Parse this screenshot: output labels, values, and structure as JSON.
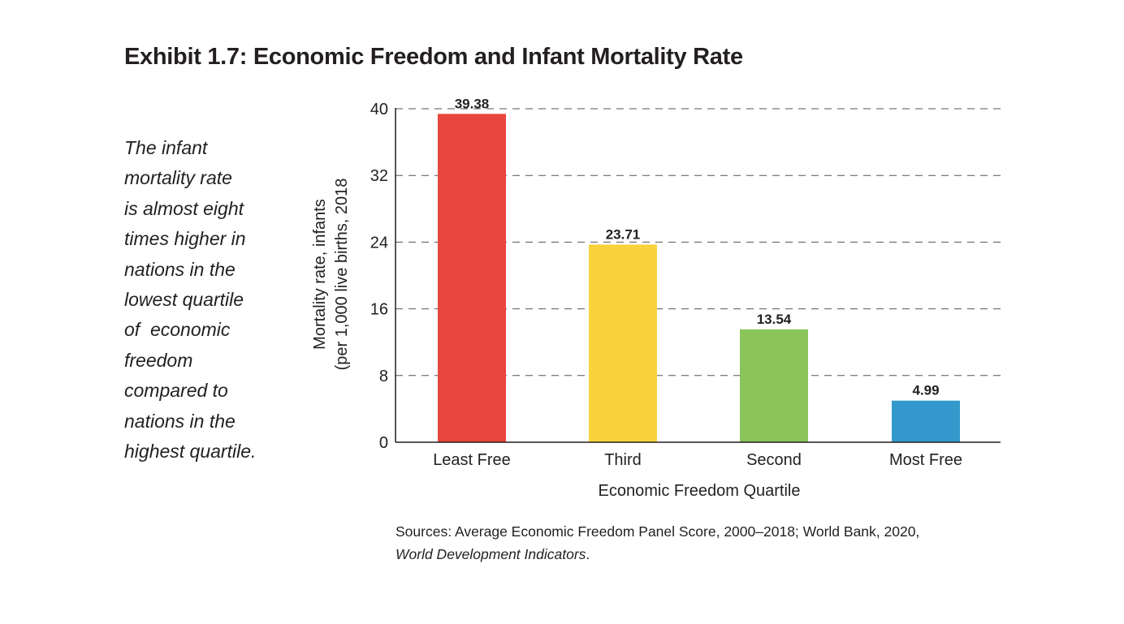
{
  "title": "Exhibit 1.7: Economic Freedom and Infant Mortality Rate",
  "sidebar_lines": [
    "The infant",
    "mortality rate",
    "is almost eight",
    "times higher in",
    "nations in the",
    "lowest quartile",
    "of  economic",
    "freedom",
    "compared to",
    "nations in the",
    "highest quartile."
  ],
  "source": {
    "text": "Sources: Average Economic Freedom Panel Score, 2000–2018; World Bank, 2020,",
    "italic": "World Development Indicators",
    "end": "."
  },
  "chart_data": {
    "type": "bar",
    "categories": [
      "Least Free",
      "Third",
      "Second",
      "Most Free"
    ],
    "values": [
      39.38,
      23.71,
      13.54,
      4.99
    ],
    "value_labels": [
      "39.38",
      "23.71",
      "13.54",
      "4.99"
    ],
    "colors": [
      "#e9463d",
      "#f9d23c",
      "#8bc45a",
      "#3399cc"
    ],
    "xlabel": "Economic Freedom Quartile",
    "ylabel_lines": [
      "Mortality rate, infants",
      "(per 1,000 live births, 2018"
    ],
    "ylim": [
      0,
      40
    ],
    "yticks": [
      0,
      8,
      16,
      24,
      32,
      40
    ],
    "grid": "dashed horizontal"
  }
}
